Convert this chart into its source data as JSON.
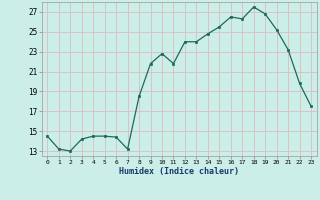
{
  "x": [
    0,
    1,
    2,
    3,
    4,
    5,
    6,
    7,
    8,
    9,
    10,
    11,
    12,
    13,
    14,
    15,
    16,
    17,
    18,
    19,
    20,
    21,
    22,
    23
  ],
  "y": [
    14.5,
    13.2,
    13.0,
    14.2,
    14.5,
    14.5,
    14.4,
    13.2,
    18.5,
    21.8,
    22.8,
    21.8,
    24.0,
    24.0,
    24.8,
    25.5,
    26.5,
    26.3,
    27.5,
    26.8,
    25.2,
    23.2,
    19.8,
    17.5
  ],
  "xlabel": "Humidex (Indice chaleur)",
  "bg_color": "#cceee8",
  "grid_color": "#ddbcbc",
  "line_color": "#1a6b5a",
  "marker_color": "#1a6b5a",
  "ylim": [
    12.5,
    28.0
  ],
  "yticks": [
    13,
    15,
    17,
    19,
    21,
    23,
    25,
    27
  ],
  "xticks": [
    0,
    1,
    2,
    3,
    4,
    5,
    6,
    7,
    8,
    9,
    10,
    11,
    12,
    13,
    14,
    15,
    16,
    17,
    18,
    19,
    20,
    21,
    22,
    23
  ]
}
